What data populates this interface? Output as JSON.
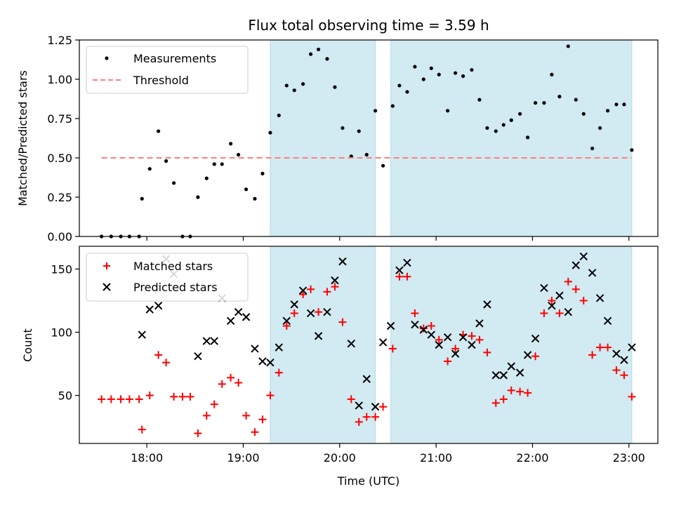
{
  "chart_data": {
    "title": "Flux total observing time = 3.59 h",
    "xlabel": "Time (UTC)",
    "x_tick_labels": [
      "18:00",
      "19:00",
      "20:00",
      "21:00",
      "22:00",
      "23:00"
    ],
    "x_range_hours": [
      17.3,
      23.3
    ],
    "shaded_intervals_hours": [
      [
        19.28,
        20.37
      ],
      [
        20.53,
        23.03
      ]
    ],
    "shade_color": "#add8e6",
    "panels": [
      {
        "type": "scatter",
        "ylabel": "Matched/Predicted stars",
        "ylim": [
          0,
          1.25
        ],
        "y_ticks": [
          0.0,
          0.25,
          0.5,
          0.75,
          1.0,
          1.25
        ],
        "y_tick_labels": [
          "0.00",
          "0.25",
          "0.50",
          "0.75",
          "1.00",
          "1.25"
        ],
        "legend_position": "upper-left",
        "series": [
          {
            "name": "Measurements",
            "marker": "dot",
            "color": "#000000",
            "x": [
              17.53,
              17.63,
              17.73,
              17.82,
              17.92,
              17.95,
              18.03,
              18.12,
              18.2,
              18.28,
              18.37,
              18.45,
              18.53,
              18.62,
              18.7,
              18.78,
              18.87,
              18.95,
              19.03,
              19.12,
              19.2,
              19.28,
              19.37,
              19.45,
              19.53,
              19.62,
              19.7,
              19.78,
              19.87,
              19.95,
              20.03,
              20.12,
              20.2,
              20.28,
              20.37,
              20.45,
              20.55,
              20.62,
              20.7,
              20.78,
              20.87,
              20.95,
              21.03,
              21.12,
              21.2,
              21.28,
              21.37,
              21.45,
              21.53,
              21.62,
              21.7,
              21.78,
              21.87,
              21.95,
              22.03,
              22.12,
              22.2,
              22.28,
              22.37,
              22.45,
              22.53,
              22.62,
              22.7,
              22.78,
              22.87,
              22.95,
              23.03
            ],
            "y": [
              0,
              0,
              0,
              0,
              0,
              0.24,
              0.43,
              0.67,
              0.48,
              0.34,
              0,
              0,
              0.25,
              0.37,
              0.46,
              0.46,
              0.59,
              0.52,
              0.3,
              0.24,
              0.4,
              0.66,
              0.77,
              0.96,
              0.93,
              0.97,
              1.16,
              1.19,
              1.13,
              0.95,
              0.69,
              0.51,
              0.67,
              0.52,
              0.8,
              0.45,
              0.83,
              0.96,
              0.92,
              1.08,
              1.0,
              1.07,
              1.03,
              0.8,
              1.04,
              1.02,
              1.06,
              0.87,
              0.69,
              0.67,
              0.71,
              0.74,
              0.78,
              0.63,
              0.85,
              0.85,
              1.03,
              0.89,
              1.21,
              0.87,
              0.78,
              0.56,
              0.69,
              0.8,
              0.84,
              0.84,
              0.55
            ]
          },
          {
            "name": "Threshold",
            "marker": "dashed-line",
            "color": "#ff7f7f",
            "x": [
              17.53,
              23.03
            ],
            "y": [
              0.5,
              0.5
            ]
          }
        ]
      },
      {
        "type": "scatter",
        "ylabel": "Count",
        "ylim": [
          12,
          168
        ],
        "y_ticks": [
          50,
          100,
          150
        ],
        "y_tick_labels": [
          "50",
          "100",
          "150"
        ],
        "legend_position": "upper-left",
        "series": [
          {
            "name": "Matched stars",
            "marker": "plus",
            "color": "#ff0000",
            "x": [
              17.53,
              17.63,
              17.73,
              17.82,
              17.92,
              17.95,
              18.03,
              18.12,
              18.2,
              18.28,
              18.37,
              18.45,
              18.53,
              18.62,
              18.7,
              18.78,
              18.87,
              18.95,
              19.03,
              19.12,
              19.2,
              19.28,
              19.37,
              19.45,
              19.53,
              19.62,
              19.7,
              19.78,
              19.87,
              19.95,
              20.03,
              20.12,
              20.2,
              20.28,
              20.37,
              20.45,
              20.55,
              20.62,
              20.7,
              20.78,
              20.87,
              20.95,
              21.03,
              21.12,
              21.2,
              21.28,
              21.37,
              21.45,
              21.53,
              21.62,
              21.7,
              21.78,
              21.87,
              21.95,
              22.03,
              22.12,
              22.2,
              22.28,
              22.37,
              22.45,
              22.53,
              22.62,
              22.7,
              22.78,
              22.87,
              22.95,
              23.03
            ],
            "y": [
              47,
              47,
              47,
              47,
              47,
              23,
              50,
              82,
              76,
              49,
              49,
              49,
              20,
              34,
              43,
              59,
              64,
              60,
              34,
              21,
              31,
              50,
              68,
              105,
              115,
              130,
              134,
              116,
              132,
              136,
              108,
              47,
              29,
              33,
              33,
              41,
              87,
              144,
              144,
              115,
              103,
              105,
              94,
              77,
              87,
              98,
              97,
              94,
              84,
              44,
              47,
              54,
              53,
              52,
              81,
              115,
              125,
              115,
              140,
              134,
              125,
              82,
              88,
              88,
              70,
              66,
              49
            ]
          },
          {
            "name": "Predicted stars",
            "marker": "x",
            "color": "#000000",
            "x": [
              17.95,
              18.03,
              18.12,
              18.2,
              18.28,
              18.53,
              18.62,
              18.7,
              18.78,
              18.87,
              18.95,
              19.03,
              19.12,
              19.2,
              19.28,
              19.37,
              19.45,
              19.53,
              19.62,
              19.7,
              19.78,
              19.87,
              19.95,
              20.03,
              20.12,
              20.2,
              20.28,
              20.37,
              20.45,
              20.53,
              20.62,
              20.7,
              20.78,
              20.87,
              20.95,
              21.03,
              21.12,
              21.2,
              21.28,
              21.37,
              21.45,
              21.53,
              21.62,
              21.7,
              21.78,
              21.87,
              21.95,
              22.03,
              22.12,
              22.2,
              22.28,
              22.37,
              22.45,
              22.53,
              22.62,
              22.7,
              22.78,
              22.87,
              22.95,
              23.03
            ],
            "y": [
              98,
              118,
              121,
              158,
              146,
              81,
              93,
              93,
              127,
              109,
              116,
              112,
              87,
              77,
              76,
              88,
              109,
              122,
              133,
              115,
              97,
              116,
              141,
              156,
              91,
              42,
              63,
              41,
              92,
              105,
              149,
              155,
              106,
              102,
              98,
              90,
              96,
              83,
              96,
              90,
              107,
              122,
              66,
              66,
              73,
              68,
              82,
              95,
              135,
              121,
              129,
              116,
              153,
              160,
              147,
              127,
              109,
              83,
              78,
              88
            ]
          }
        ]
      }
    ]
  }
}
